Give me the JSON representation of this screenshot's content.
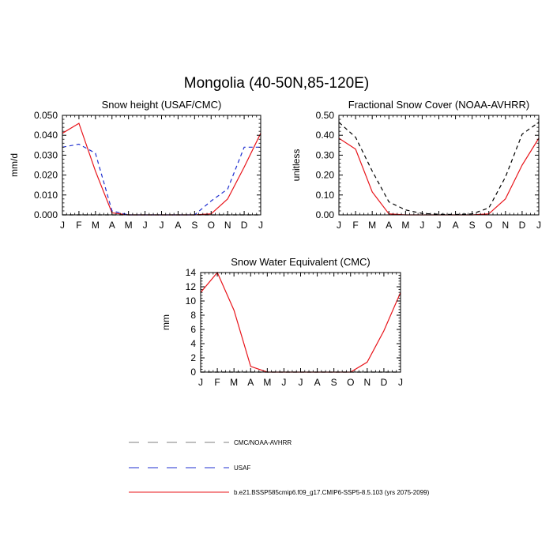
{
  "figure": {
    "title": "Mongolia (40-50N,85-120E)"
  },
  "months": [
    "J",
    "F",
    "M",
    "A",
    "M",
    "J",
    "J",
    "A",
    "S",
    "O",
    "N",
    "D",
    "J"
  ],
  "chart_data": [
    {
      "type": "line",
      "title": "Snow height (USAF/CMC)",
      "xlabel": "",
      "ylabel": "mm/d",
      "categories": [
        "J",
        "F",
        "M",
        "A",
        "M",
        "J",
        "J",
        "A",
        "S",
        "O",
        "N",
        "D",
        "J"
      ],
      "ylim": [
        0,
        0.05
      ],
      "yticks": [
        "0.000",
        "0.010",
        "0.020",
        "0.030",
        "0.040",
        "0.050"
      ],
      "series": [
        {
          "name": "b.e21.BSSP585cmip6.f09_g17.CMIP6-SSP5-8.5.103 (yrs 2075-2099)",
          "color": "#e8141a",
          "dash": "solid",
          "values": [
            0.041,
            0.046,
            0.022,
            0.001,
            0.0,
            0.0,
            0.0,
            0.0,
            0.0,
            0.0005,
            0.008,
            0.024,
            0.041
          ]
        },
        {
          "name": "USAF",
          "color": "#1f2fd0",
          "dash": "dash",
          "values": [
            0.034,
            0.0355,
            0.031,
            0.002,
            0.0,
            0.0,
            0.0,
            0.0,
            0.0,
            0.007,
            0.013,
            0.034,
            0.034
          ]
        },
        {
          "name": "CMC/NOAA-AVHRR",
          "color": "#000000",
          "dash": "dash",
          "values": [
            0.0,
            0.0,
            0.0,
            0.0,
            0.0,
            0.0,
            0.0,
            0.0,
            0.0,
            0.0,
            0.0,
            0.0,
            0.0
          ]
        }
      ]
    },
    {
      "type": "line",
      "title": "Fractional Snow Cover (NOAA-AVHRR)",
      "xlabel": "",
      "ylabel": "unitless",
      "categories": [
        "J",
        "F",
        "M",
        "A",
        "M",
        "J",
        "J",
        "A",
        "S",
        "O",
        "N",
        "D",
        "J"
      ],
      "ylim": [
        0,
        0.5
      ],
      "yticks": [
        "0.00",
        "0.10",
        "0.20",
        "0.30",
        "0.40",
        "0.50"
      ],
      "series": [
        {
          "name": "b.e21.BSSP585cmip6.f09_g17.CMIP6-SSP5-8.5.103 (yrs 2075-2099)",
          "color": "#e8141a",
          "dash": "solid",
          "values": [
            0.385,
            0.33,
            0.115,
            0.005,
            0.0,
            0.0,
            0.0,
            0.0,
            0.0,
            0.005,
            0.08,
            0.25,
            0.385
          ]
        },
        {
          "name": "CMC/NOAA-AVHRR",
          "color": "#000000",
          "dash": "dash",
          "values": [
            0.465,
            0.39,
            0.22,
            0.065,
            0.025,
            0.007,
            0.003,
            0.002,
            0.005,
            0.035,
            0.19,
            0.405,
            0.465
          ]
        }
      ]
    },
    {
      "type": "line",
      "title": "Snow Water Equivalent (CMC)",
      "xlabel": "",
      "ylabel": "mm",
      "categories": [
        "J",
        "F",
        "M",
        "A",
        "M",
        "J",
        "J",
        "A",
        "S",
        "O",
        "N",
        "D",
        "J"
      ],
      "ylim": [
        0,
        14
      ],
      "yticks": [
        "0",
        "2",
        "4",
        "6",
        "8",
        "10",
        "12",
        "14"
      ],
      "series": [
        {
          "name": "b.e21.BSSP585cmip6.f09_g17.CMIP6-SSP5-8.5.103 (yrs 2075-2099)",
          "color": "#e8141a",
          "dash": "solid",
          "values": [
            11.2,
            14.0,
            8.7,
            0.8,
            0.0,
            0.0,
            0.0,
            0.0,
            0.0,
            0.0,
            1.4,
            5.8,
            11.2
          ]
        },
        {
          "name": "CMC/NOAA-AVHRR",
          "color": "#000000",
          "dash": "dash",
          "values": [
            0.0,
            0.0,
            0.0,
            0.0,
            0.0,
            0.0,
            0.0,
            0.0,
            0.0,
            0.0,
            0.0,
            0.0,
            0.0
          ]
        }
      ]
    }
  ],
  "legend": {
    "placement": "bottom-center",
    "items": [
      {
        "label": "CMC/NOAA-AVHRR",
        "color": "#7f7f7f",
        "dash": "dash"
      },
      {
        "label": "USAF",
        "color": "#1f2fd0",
        "dash": "dash"
      },
      {
        "label": "b.e21.BSSP585cmip6.f09_g17.CMIP6-SSP5-8.5.103 (yrs 2075-2099)",
        "color": "#e8141a",
        "dash": "solid"
      }
    ]
  }
}
